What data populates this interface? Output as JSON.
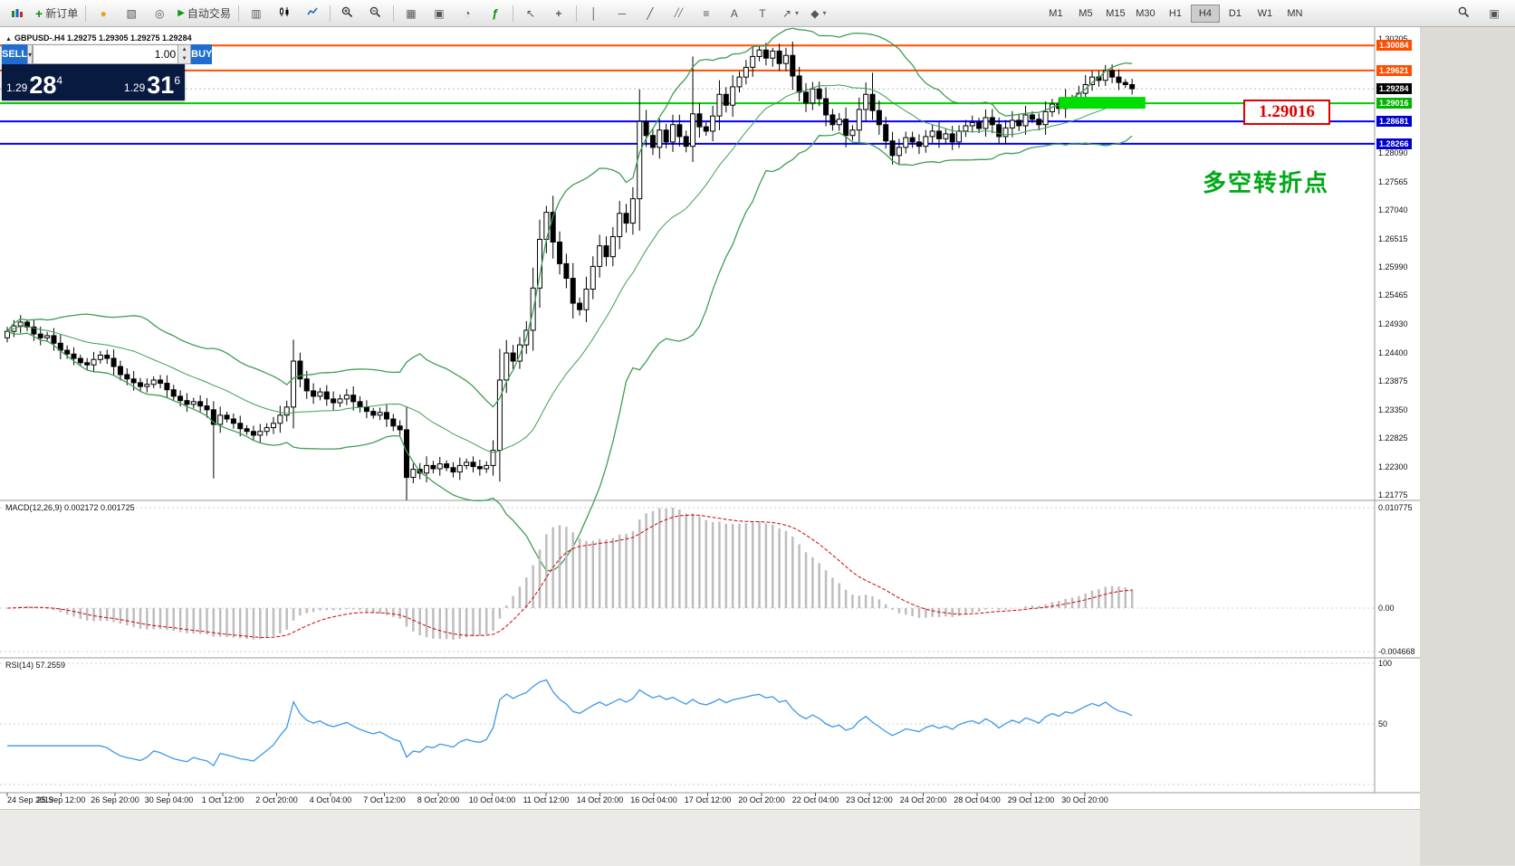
{
  "toolbar": {
    "new_order_label": "新订单",
    "auto_trading_label": "自动交易",
    "timeframes": [
      "M1",
      "M5",
      "M15",
      "M30",
      "H1",
      "H4",
      "D1",
      "W1",
      "MN"
    ],
    "active_timeframe": "H4",
    "icons": {
      "new_order_plus": "+",
      "bulb": "●",
      "profiles": "▧",
      "alerts": "◎",
      "auto_play": "▶",
      "bar_chart": "▥",
      "grid": "▦",
      "tile_windows": "▣",
      "cursor": "↖",
      "crosshair": "+",
      "vertical_line": "│",
      "horizontal_line": "─",
      "trendline": "╱",
      "channel": "╱╱",
      "fibonacci": "≡",
      "text_tool": "A",
      "label_tool": "T",
      "arrow_tool": "↗",
      "shapes": "◆",
      "clock": "◔",
      "indicators": "ƒ",
      "caret": "▾",
      "windows": "▣"
    }
  },
  "trade_panel": {
    "sell_label": "SELL",
    "buy_label": "BUY",
    "volume": "1.00",
    "sell_price": {
      "base": "1.29",
      "big": "28",
      "sup": "4"
    },
    "buy_price": {
      "base": "1.29",
      "big": "31",
      "sup": "6"
    }
  },
  "chart_data": {
    "type": "candlestick",
    "symbol": "GBPUSD-",
    "timeframe": "H4",
    "title_readout": "GBPUSD-.H4  1.29275 1.29305 1.29275 1.29284",
    "ohlc_readout": {
      "open": "1.29275",
      "high": "1.29305",
      "low": "1.29275",
      "close": "1.29284"
    },
    "y_range": [
      1.21775,
      1.30205
    ],
    "y_ticks": [
      "1.30205",
      "1.28090",
      "1.27565",
      "1.27040",
      "1.26515",
      "1.25990",
      "1.25465",
      "1.24930",
      "1.24400",
      "1.23875",
      "1.23350",
      "1.22825",
      "1.22300",
      "1.21775"
    ],
    "price_tags": [
      {
        "value": "1.30084",
        "type": "resistance",
        "color": "#ff4e00"
      },
      {
        "value": "1.29621",
        "type": "resistance",
        "color": "#ff4e00"
      },
      {
        "value": "1.29284",
        "type": "current",
        "color": "#000000"
      },
      {
        "value": "1.29016",
        "type": "pivot",
        "color": "#00b400"
      },
      {
        "value": "1.28681",
        "type": "support",
        "color": "#0000cc"
      },
      {
        "value": "1.28266",
        "type": "support",
        "color": "#0000cc"
      }
    ],
    "x_labels": [
      "24 Sep 2019",
      "25 Sep 12:00",
      "26 Sep 20:00",
      "30 Sep 04:00",
      "1 Oct 12:00",
      "2 Oct 20:00",
      "4 Oct 04:00",
      "7 Oct 12:00",
      "8 Oct 20:00",
      "10 Oct 04:00",
      "11 Oct 12:00",
      "14 Oct 20:00",
      "16 Oct 04:00",
      "17 Oct 12:00",
      "20 Oct 20:00",
      "22 Oct 04:00",
      "23 Oct 12:00",
      "24 Oct 20:00",
      "28 Oct 04:00",
      "29 Oct 12:00",
      "30 Oct 20:00"
    ],
    "closes": [
      1.248,
      1.249,
      1.2497,
      1.2488,
      1.2475,
      1.2468,
      1.2472,
      1.2458,
      1.2445,
      1.2438,
      1.243,
      1.2422,
      1.2418,
      1.2428,
      1.2436,
      1.243,
      1.2415,
      1.24,
      1.2392,
      1.2385,
      1.2378,
      1.2382,
      1.239,
      1.2384,
      1.2372,
      1.236,
      1.2352,
      1.2345,
      1.235,
      1.2342,
      1.2335,
      1.2308,
      1.2325,
      1.2318,
      1.231,
      1.23,
      1.2295,
      1.2288,
      1.2295,
      1.2302,
      1.231,
      1.2325,
      1.234,
      1.2425,
      1.2392,
      1.237,
      1.236,
      1.2368,
      1.2355,
      1.2348,
      1.2355,
      1.2362,
      1.235,
      1.234,
      1.2332,
      1.2325,
      1.233,
      1.2318,
      1.2305,
      1.2298,
      1.221,
      1.2225,
      1.2218,
      1.2232,
      1.2226,
      1.2235,
      1.2228,
      1.222,
      1.2232,
      1.2238,
      1.223,
      1.2226,
      1.2232,
      1.226,
      1.239,
      1.244,
      1.2425,
      1.2455,
      1.2482,
      1.256,
      1.265,
      1.27,
      1.2645,
      1.2605,
      1.2578,
      1.2532,
      1.252,
      1.2558,
      1.26,
      1.2638,
      1.2618,
      1.2655,
      1.2698,
      1.268,
      1.2725,
      1.2868,
      1.2842,
      1.282,
      1.2852,
      1.283,
      1.2862,
      1.284,
      1.2822,
      1.2882,
      1.2858,
      1.285,
      1.2878,
      1.2918,
      1.2898,
      1.2932,
      1.295,
      1.2968,
      1.2988,
      1.3,
      1.2985,
      1.2998,
      1.2975,
      1.299,
      1.2952,
      1.2922,
      1.2902,
      1.2928,
      1.291,
      1.288,
      1.2862,
      1.2872,
      1.2842,
      1.2852,
      1.289,
      1.2918,
      1.2888,
      1.2862,
      1.2832,
      1.2805,
      1.282,
      1.2838,
      1.283,
      1.2822,
      1.284,
      1.285,
      1.2836,
      1.2845,
      1.283,
      1.285,
      1.286,
      1.2866,
      1.2855,
      1.2875,
      1.2862,
      1.284,
      1.2856,
      1.287,
      1.286,
      1.288,
      1.2872,
      1.2862,
      1.2886,
      1.29,
      1.2892,
      1.291,
      1.2906,
      1.292,
      1.2936,
      1.295,
      1.2944,
      1.2962,
      1.295,
      1.294,
      1.2936,
      1.29284
    ],
    "wick_overrides": [
      {
        "i": 3,
        "high": 1.2502
      },
      {
        "i": 31,
        "low": 1.2208
      },
      {
        "i": 81,
        "high": 1.2712
      },
      {
        "i": 103,
        "high": 1.2988
      },
      {
        "i": 113,
        "high": 1.3008
      },
      {
        "i": 115,
        "high": 1.3004
      },
      {
        "i": 130,
        "high": 1.2958
      }
    ],
    "levels": {
      "resistance": [
        1.30084,
        1.29621
      ],
      "pivot": 1.29016,
      "support": [
        1.28681,
        1.28266
      ],
      "current": 1.29284
    },
    "highlight_zone": {
      "price": 1.29016,
      "from_index": 158,
      "to_index": 171
    },
    "indicators": {
      "bollinger": {
        "period": 20,
        "deviation": 2
      },
      "macd": {
        "label": "MACD(12,26,9) 0.002172 0.001725",
        "scale": [
          "0.010775",
          "0.00",
          "-0.004668"
        ]
      },
      "rsi": {
        "label": "RSI(14) 57.2559",
        "scale": [
          "100",
          "50"
        ]
      }
    },
    "annotations": {
      "price_box": "1.29016",
      "note": "多空转折点"
    },
    "colors": {
      "bollinger": "#3e9e53",
      "macd_hist": "#bdbdbd",
      "macd_signal": "#d40000",
      "rsi": "#3d97e8",
      "level_orange": "#ff4e00",
      "level_green": "#00cc00",
      "level_blue": "#0000ff",
      "highlight": "#00dd00",
      "bull": "#ffffff",
      "bear": "#000000"
    }
  }
}
